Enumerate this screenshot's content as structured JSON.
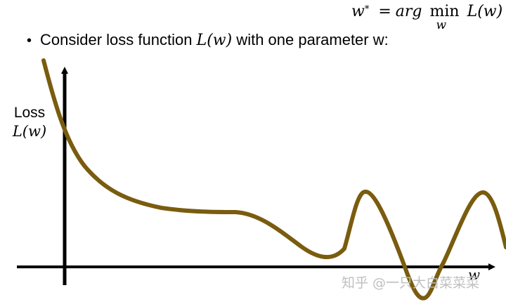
{
  "formula": {
    "lhs": "w",
    "lhs_sup": "*",
    "equals": "=",
    "arg": "arg",
    "min": "min",
    "min_sub": "w",
    "rhs": "L(w)"
  },
  "bullet": {
    "prefix": "Consider loss function ",
    "math": "L(w)",
    "suffix": " with one parameter w:"
  },
  "axis": {
    "ylabel_text": "Loss",
    "ylabel_math": "L(w)",
    "xlabel": "w"
  },
  "watermark": "知乎 @一只大白菜菜菜",
  "colors": {
    "curve": "#7a5c0f",
    "axis": "#000000",
    "watermark": "#bfbfbf"
  }
}
